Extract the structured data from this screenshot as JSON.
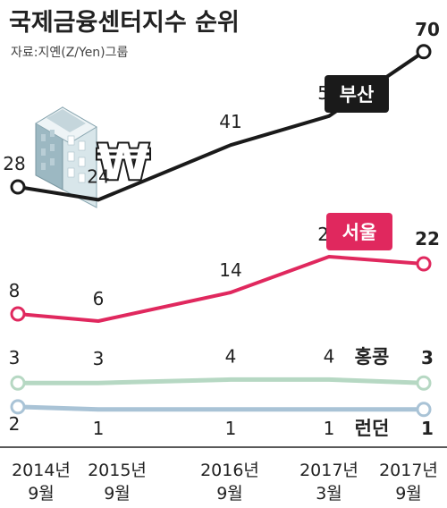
{
  "title": "국제금융센터지수 순위",
  "source": "자료:지옌(Z/Yen)그룹",
  "icon": "building-won-icon",
  "colors": {
    "busan": "#1a1a1a",
    "seoul": "#e0285e",
    "hongkong": "#b6d8c3",
    "london": "#a9c3d6"
  },
  "chart_data": {
    "type": "line",
    "title": "국제금융센터지수 순위",
    "y_inverted": true,
    "categories": [
      [
        "2014년",
        "9월"
      ],
      [
        "2015년",
        "9월"
      ],
      [
        "2016년",
        "9월"
      ],
      [
        "2017년",
        "3월"
      ],
      [
        "2017년",
        "9월"
      ]
    ],
    "series": [
      {
        "key": "busan",
        "name": "부산",
        "values": [
          28,
          24,
          41,
          50,
          70
        ],
        "labels": [
          "28",
          "24",
          "41",
          "50",
          "70"
        ]
      },
      {
        "key": "seoul",
        "name": "서울",
        "values": [
          8,
          6,
          14,
          24,
          22
        ],
        "labels": [
          "8",
          "6",
          "14",
          "24",
          "22"
        ]
      },
      {
        "key": "hongkong",
        "name": "홍콩",
        "values": [
          3,
          3,
          4,
          4,
          3
        ],
        "labels": [
          "3",
          "3",
          "4",
          "4",
          "3"
        ]
      },
      {
        "key": "london",
        "name": "런던",
        "values": [
          2,
          1,
          1,
          1,
          1
        ],
        "labels": [
          "2",
          "1",
          "1",
          "1",
          "1"
        ]
      }
    ]
  }
}
